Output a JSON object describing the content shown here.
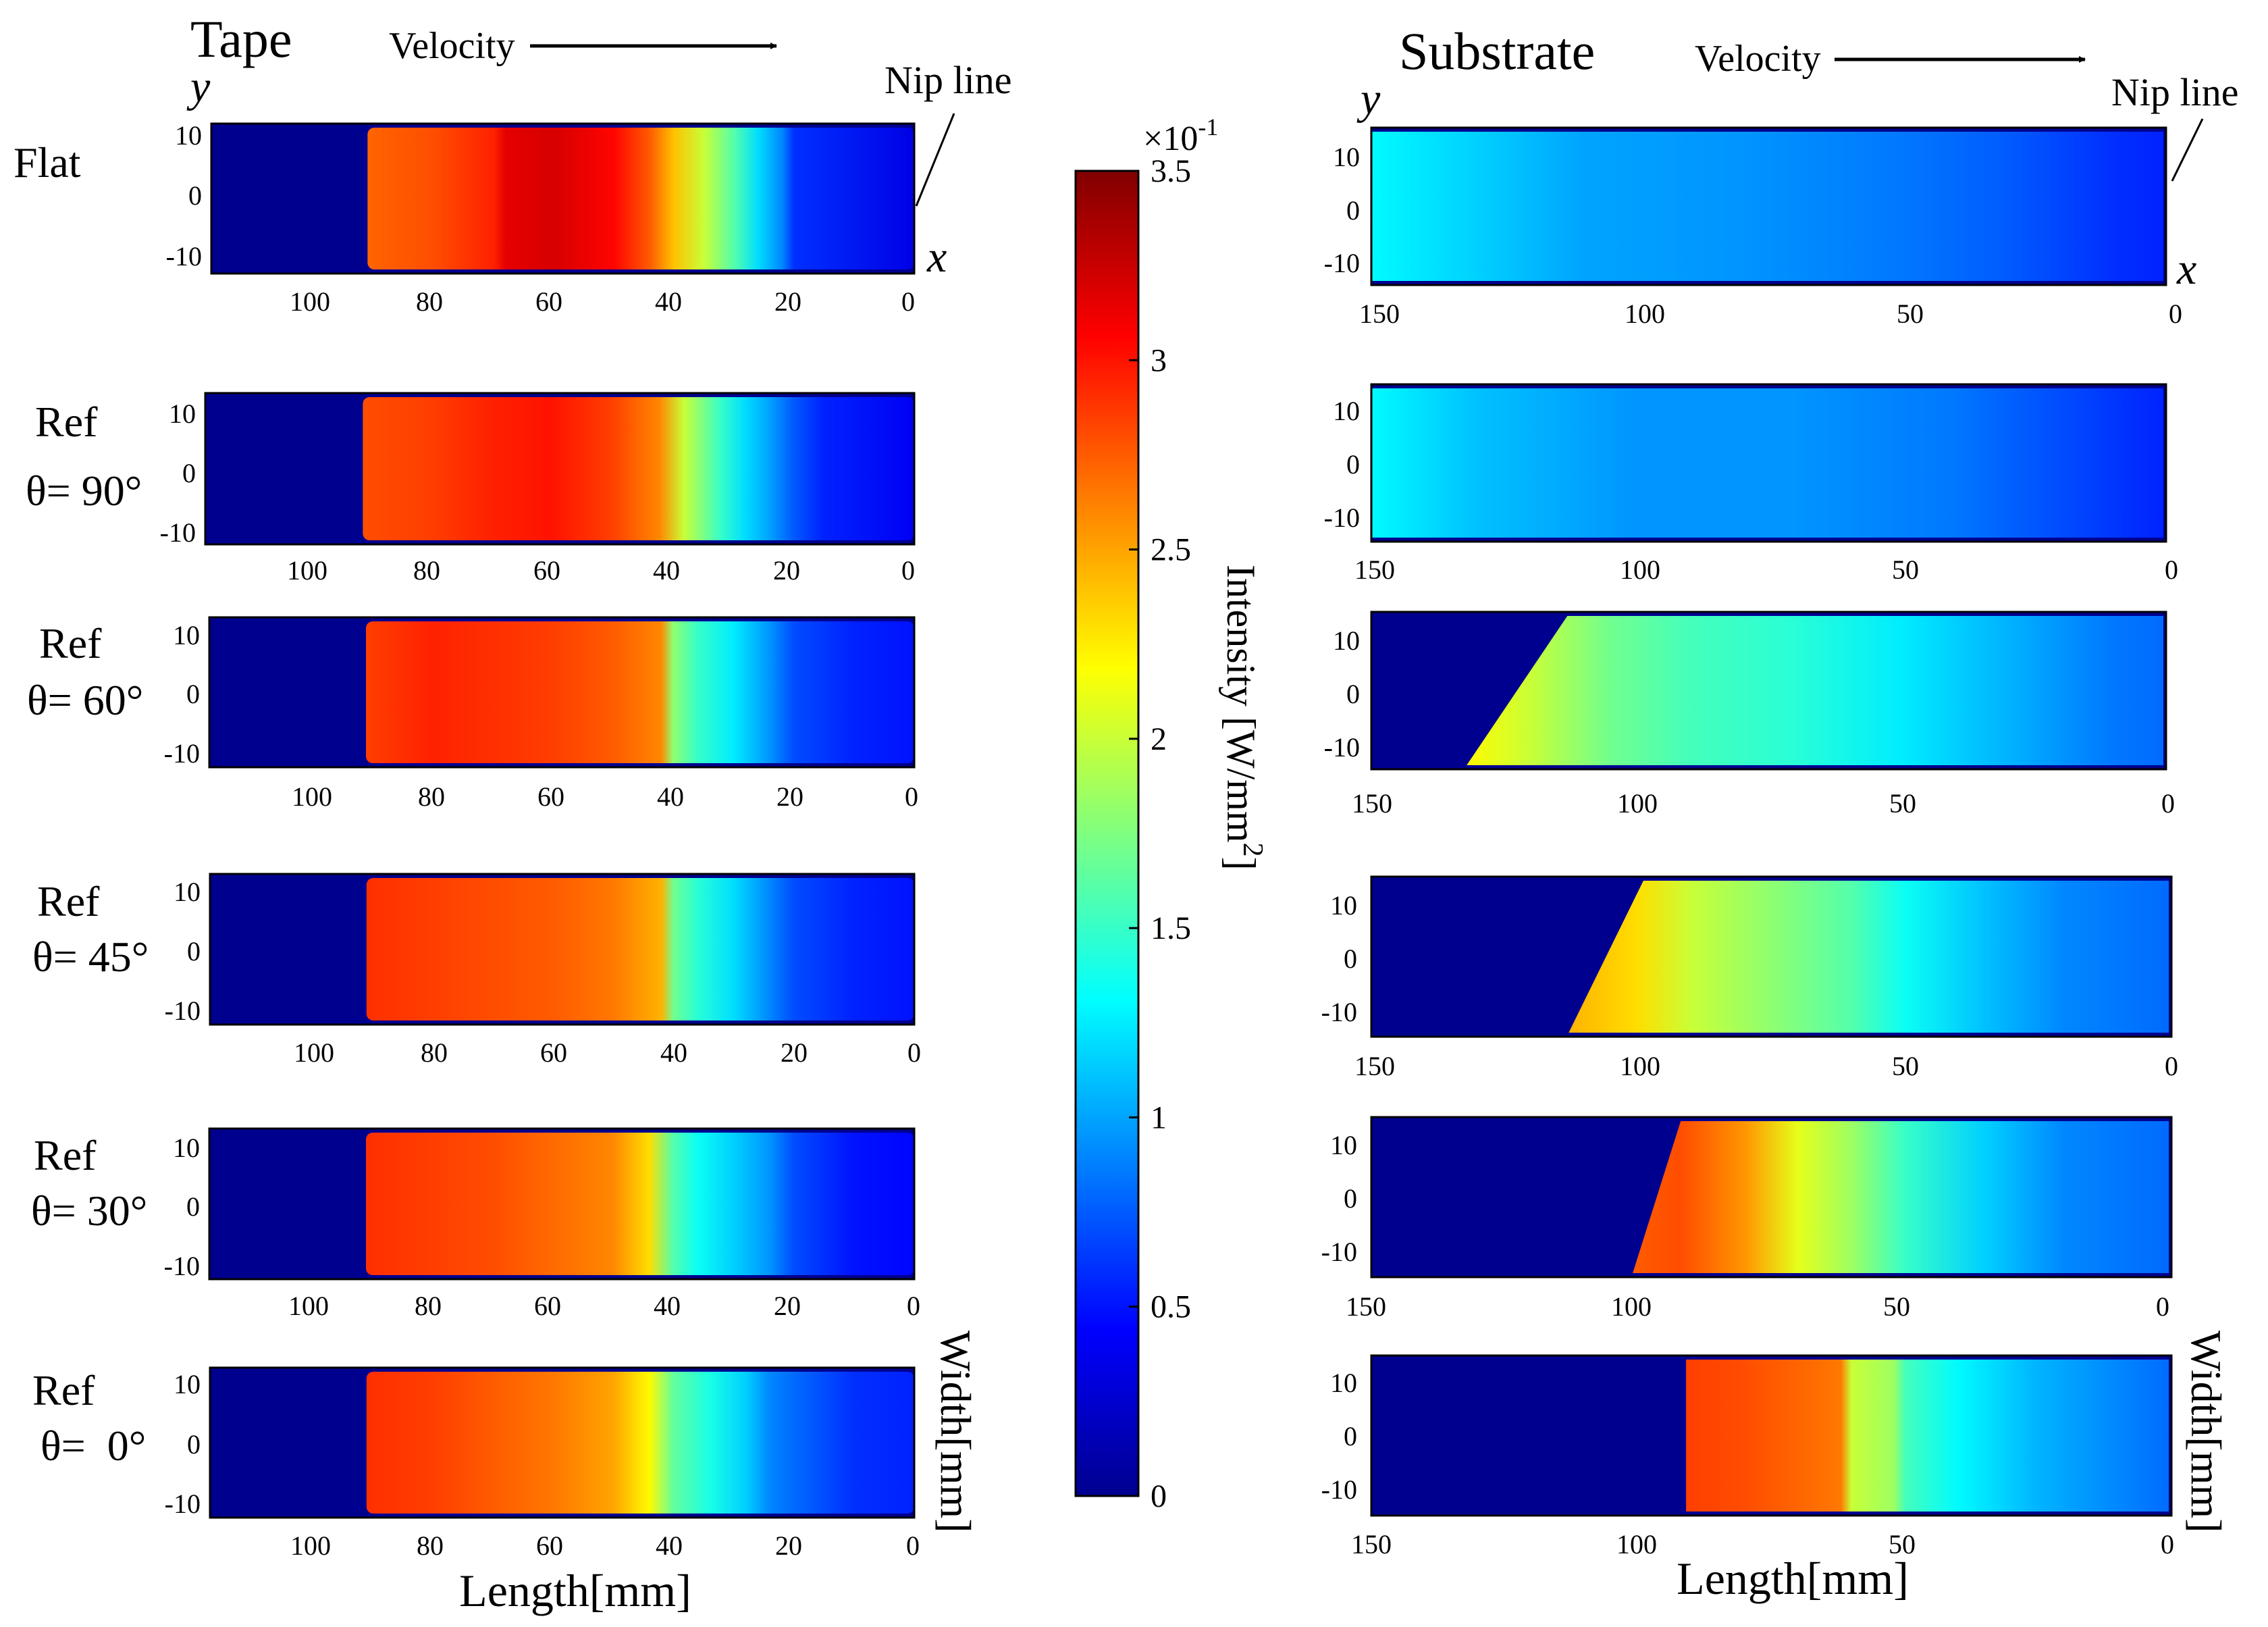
{
  "chart_data": {
    "type": "heatmap",
    "title": "",
    "colormap": "jet",
    "colorbar": {
      "label": "Intensity [W/mm²]",
      "label_main": "Intensity [W/mm",
      "label_exp": "2",
      "label_close": "]",
      "exponent_base": "×10",
      "exponent_power": "-1",
      "range": [
        0,
        3.5
      ],
      "ticks": [
        0,
        0.5,
        1,
        1.5,
        2,
        2.5,
        3,
        3.5
      ],
      "tick_labels": [
        "0",
        "0.5",
        "1",
        "1.5",
        "2",
        "2.5",
        "3",
        "3.5"
      ]
    },
    "columns": [
      {
        "name": "Tape",
        "velocity_label": "Velocity",
        "nip_label": "Nip line",
        "axis_x_letter": "x",
        "axis_y_letter": "y",
        "xlabel": "Length[mm]",
        "ylabel": "Width[mm]",
        "xlim": [
          117,
          0
        ],
        "xticks": [
          100,
          80,
          60,
          40,
          20,
          0
        ],
        "xtick_labels": [
          "100",
          "80",
          "60",
          "40",
          "20",
          "0"
        ],
        "ylim": [
          -12.5,
          12.5
        ],
        "yticks": [
          10,
          0,
          -10
        ],
        "ytick_labels": [
          "10",
          "0",
          "-10"
        ]
      },
      {
        "name": "Substrate",
        "velocity_label": "Velocity",
        "nip_label": "Nip line",
        "axis_x_letter": "x",
        "axis_y_letter": "y",
        "xlabel": "Length[mm]",
        "ylabel": "Width[mm]",
        "xlim": [
          150,
          0
        ],
        "xticks": [
          150,
          100,
          50,
          0
        ],
        "xtick_labels": [
          "150",
          "100",
          "50",
          "0"
        ],
        "ylim": [
          -15,
          15
        ],
        "yticks": [
          10,
          0,
          -10
        ],
        "ytick_labels": [
          "10",
          "0",
          "-10"
        ]
      }
    ],
    "rows": [
      {
        "label_line1": "Flat",
        "label_line2": "",
        "theta": null
      },
      {
        "label_line1": "Ref",
        "label_line2": "θ= 90°",
        "theta": 90
      },
      {
        "label_line1": "Ref",
        "label_line2": "θ= 60°",
        "theta": 60
      },
      {
        "label_line1": "Ref",
        "label_line2": "θ= 45°",
        "theta": 45
      },
      {
        "label_line1": "Ref",
        "label_line2": "θ= 30°",
        "theta": 30
      },
      {
        "label_line1": "Ref",
        "label_line2": "θ=  0°",
        "theta": 0
      }
    ],
    "tape_profiles": [
      {
        "row": 0,
        "edge_mm": 91,
        "profile": [
          [
            91,
            2.72
          ],
          [
            80,
            2.8
          ],
          [
            70,
            2.95
          ],
          [
            68,
            3.15
          ],
          [
            60,
            3.2
          ],
          [
            50,
            3.05
          ],
          [
            44,
            2.75
          ],
          [
            40,
            2.4
          ],
          [
            35,
            2.0
          ],
          [
            30,
            1.6
          ],
          [
            26,
            1.2
          ],
          [
            22,
            0.9
          ],
          [
            20,
            0.6
          ],
          [
            0,
            0.35
          ]
        ]
      },
      {
        "row": 1,
        "edge_mm": 91,
        "profile": [
          [
            91,
            2.8
          ],
          [
            80,
            2.85
          ],
          [
            70,
            2.95
          ],
          [
            60,
            3.0
          ],
          [
            50,
            2.85
          ],
          [
            42,
            2.6
          ],
          [
            38,
            2.0
          ],
          [
            32,
            1.5
          ],
          [
            28,
            1.2
          ],
          [
            24,
            1.0
          ],
          [
            20,
            0.75
          ],
          [
            15,
            0.55
          ],
          [
            0,
            0.4
          ]
        ]
      },
      {
        "row": 2,
        "edge_mm": 91,
        "profile": [
          [
            91,
            2.85
          ],
          [
            80,
            2.95
          ],
          [
            70,
            2.9
          ],
          [
            60,
            2.85
          ],
          [
            50,
            2.75
          ],
          [
            42,
            2.6
          ],
          [
            40,
            1.8
          ],
          [
            36,
            1.5
          ],
          [
            30,
            1.25
          ],
          [
            24,
            0.95
          ],
          [
            20,
            0.7
          ],
          [
            10,
            0.55
          ],
          [
            0,
            0.5
          ]
        ]
      },
      {
        "row": 3,
        "edge_mm": 91,
        "profile": [
          [
            91,
            2.9
          ],
          [
            80,
            2.85
          ],
          [
            70,
            2.8
          ],
          [
            60,
            2.75
          ],
          [
            50,
            2.65
          ],
          [
            42,
            2.45
          ],
          [
            40,
            1.7
          ],
          [
            36,
            1.45
          ],
          [
            30,
            1.2
          ],
          [
            24,
            0.9
          ],
          [
            20,
            0.7
          ],
          [
            10,
            0.55
          ],
          [
            0,
            0.5
          ]
        ]
      },
      {
        "row": 4,
        "edge_mm": 91,
        "profile": [
          [
            91,
            2.9
          ],
          [
            80,
            2.85
          ],
          [
            70,
            2.8
          ],
          [
            60,
            2.7
          ],
          [
            50,
            2.6
          ],
          [
            44,
            2.3
          ],
          [
            40,
            1.6
          ],
          [
            36,
            1.35
          ],
          [
            30,
            1.15
          ],
          [
            24,
            0.95
          ],
          [
            20,
            0.7
          ],
          [
            10,
            0.5
          ],
          [
            0,
            0.45
          ]
        ]
      },
      {
        "row": 5,
        "edge_mm": 91,
        "profile": [
          [
            91,
            2.9
          ],
          [
            80,
            2.85
          ],
          [
            70,
            2.75
          ],
          [
            60,
            2.65
          ],
          [
            50,
            2.5
          ],
          [
            44,
            2.2
          ],
          [
            40,
            1.65
          ],
          [
            34,
            1.4
          ],
          [
            28,
            1.15
          ],
          [
            24,
            0.9
          ],
          [
            20,
            0.8
          ],
          [
            10,
            0.6
          ],
          [
            0,
            0.55
          ]
        ]
      }
    ],
    "substrate_profiles": [
      {
        "row": 0,
        "edge_top_mm": 150,
        "edge_bot_mm": 150,
        "profile": [
          [
            150,
            1.3
          ],
          [
            130,
            1.15
          ],
          [
            110,
            1.0
          ],
          [
            80,
            0.95
          ],
          [
            50,
            0.85
          ],
          [
            30,
            0.75
          ],
          [
            10,
            0.6
          ],
          [
            0,
            0.55
          ]
        ]
      },
      {
        "row": 1,
        "edge_top_mm": 150,
        "edge_bot_mm": 150,
        "profile": [
          [
            150,
            1.3
          ],
          [
            130,
            1.1
          ],
          [
            100,
            0.95
          ],
          [
            70,
            0.95
          ],
          [
            40,
            0.85
          ],
          [
            20,
            0.7
          ],
          [
            0,
            0.55
          ]
        ]
      },
      {
        "row": 2,
        "edge_top_mm": 113,
        "edge_bot_mm": 132,
        "profile": [
          [
            132,
            2.2
          ],
          [
            120,
            2.0
          ],
          [
            105,
            1.7
          ],
          [
            90,
            1.55
          ],
          [
            70,
            1.45
          ],
          [
            50,
            1.25
          ],
          [
            30,
            1.05
          ],
          [
            10,
            0.85
          ],
          [
            0,
            0.8
          ]
        ]
      },
      {
        "row": 3,
        "edge_top_mm": 99,
        "edge_bot_mm": 113,
        "profile": [
          [
            113,
            2.45
          ],
          [
            100,
            2.3
          ],
          [
            90,
            2.0
          ],
          [
            75,
            1.8
          ],
          [
            60,
            1.6
          ],
          [
            50,
            1.35
          ],
          [
            35,
            1.1
          ],
          [
            20,
            0.9
          ],
          [
            0,
            0.8
          ]
        ]
      },
      {
        "row": 4,
        "edge_top_mm": 92,
        "edge_bot_mm": 101,
        "profile": [
          [
            101,
            2.75
          ],
          [
            92,
            2.8
          ],
          [
            80,
            2.55
          ],
          [
            70,
            2.1
          ],
          [
            60,
            1.85
          ],
          [
            50,
            1.5
          ],
          [
            35,
            1.15
          ],
          [
            20,
            0.9
          ],
          [
            0,
            0.8
          ]
        ]
      },
      {
        "row": 5,
        "edge_top_mm": 91,
        "edge_bot_mm": 91,
        "profile": [
          [
            91,
            2.85
          ],
          [
            80,
            2.8
          ],
          [
            62,
            2.65
          ],
          [
            60,
            2.0
          ],
          [
            52,
            1.85
          ],
          [
            50,
            1.55
          ],
          [
            40,
            1.3
          ],
          [
            25,
            1.05
          ],
          [
            10,
            0.9
          ],
          [
            0,
            0.8
          ]
        ]
      }
    ]
  }
}
